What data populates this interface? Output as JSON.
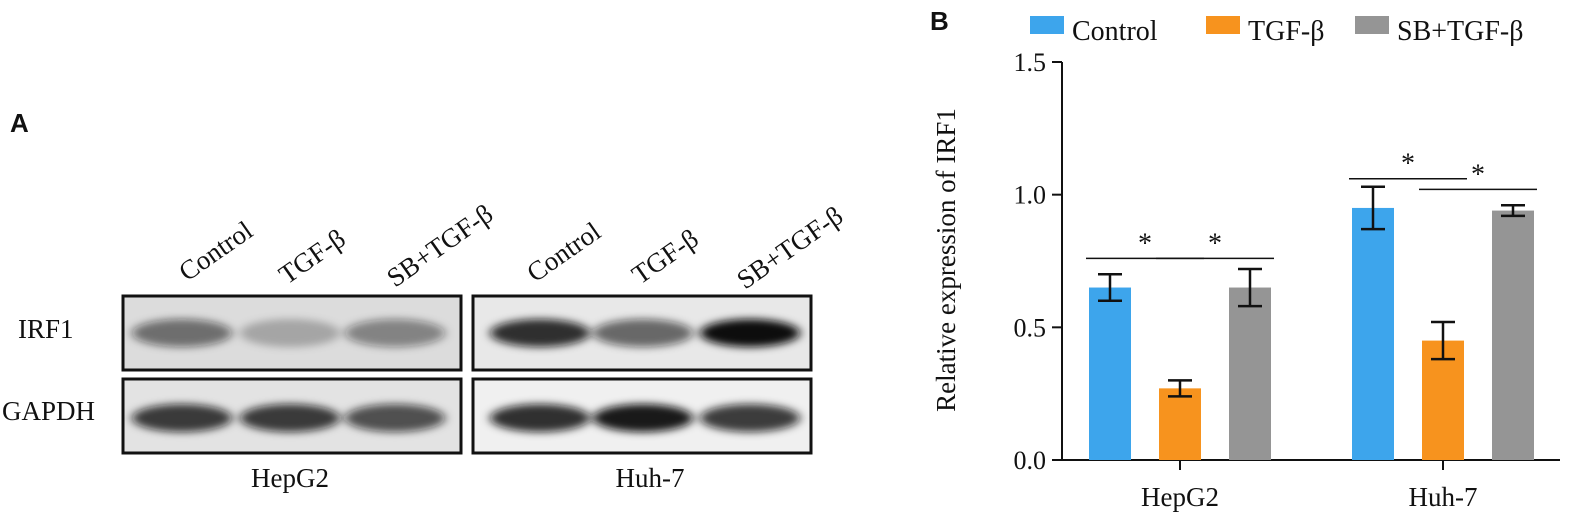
{
  "panel_a": {
    "letter": "A",
    "lane_labels": [
      "Control",
      "TGF-β",
      "SB+TGF-β",
      "Control",
      "TGF-β",
      "SB+TGF-β"
    ],
    "row_labels": [
      "IRF1",
      "GAPDH"
    ],
    "cell_lines": [
      "HepG2",
      "Huh-7"
    ],
    "band_intensity": {
      "IRF1": [
        0.55,
        0.25,
        0.45,
        0.85,
        0.6,
        1.0
      ],
      "GAPDH": [
        0.8,
        0.8,
        0.7,
        0.85,
        0.95,
        0.8
      ]
    }
  },
  "panel_b": {
    "letter": "B"
  },
  "chart_data": {
    "type": "bar",
    "categories": [
      "HepG2",
      "Huh-7"
    ],
    "series": [
      {
        "name": "Control",
        "color": "#3da5ec",
        "values": [
          0.65,
          0.95
        ],
        "errors": [
          0.05,
          0.08
        ]
      },
      {
        "name": "TGF-β",
        "color": "#f7931e",
        "values": [
          0.27,
          0.45
        ],
        "errors": [
          0.03,
          0.07
        ]
      },
      {
        "name": "SB+TGF-β",
        "color": "#959595",
        "values": [
          0.65,
          0.94
        ],
        "errors": [
          0.07,
          0.02
        ]
      }
    ],
    "ylabel": "Relative expression of IRF1",
    "xlabel": "",
    "ylim": [
      0,
      1.5
    ],
    "yticks": [
      "0.0",
      "0.5",
      "1.0",
      "1.5"
    ],
    "significance": [
      {
        "category": 0,
        "from": 0,
        "to": 1,
        "y": 0.76,
        "label": "*"
      },
      {
        "category": 0,
        "from": 1,
        "to": 2,
        "y": 0.76,
        "label": "*"
      },
      {
        "category": 1,
        "from": 0,
        "to": 1,
        "y": 1.06,
        "label": "*"
      },
      {
        "category": 1,
        "from": 1,
        "to": 2,
        "y": 1.02,
        "label": "*"
      }
    ],
    "legend_position": "top"
  }
}
